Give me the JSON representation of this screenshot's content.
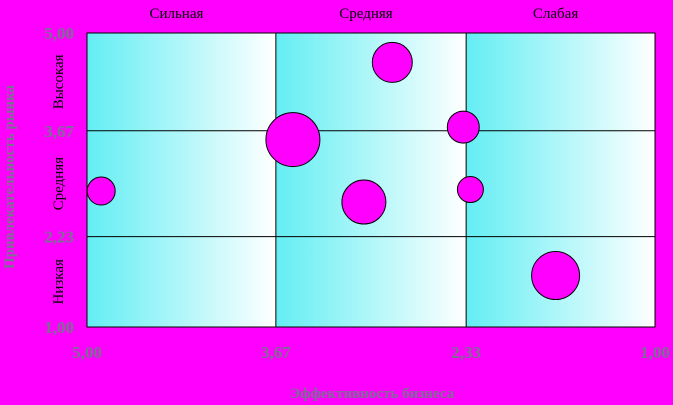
{
  "colors": {
    "background": "#ff00ff",
    "cell_start": "#63eef3",
    "cell_end": "#ffffff",
    "bubble": "#ff00ff",
    "grid": "#000000",
    "axis_text": "#7a6f93"
  },
  "chart_data": {
    "type": "scatter",
    "variant": "bubble-matrix",
    "xlabel": "Эффективность бизнеса",
    "ylabel": "Привлекательность рынка",
    "x_reversed": true,
    "xlim": [
      5.0,
      1.0
    ],
    "ylim": [
      1.0,
      5.0
    ],
    "x_ticks": [
      "5,00",
      "3,67",
      "2,33",
      "1,00"
    ],
    "x_tick_values": [
      5.0,
      3.67,
      2.33,
      1.0
    ],
    "y_ticks": [
      "1,00",
      "2,23",
      "3,67",
      "5,00"
    ],
    "y_tick_values": [
      1.0,
      2.23,
      3.67,
      5.0
    ],
    "column_labels": [
      "Сильная",
      "Средняя",
      "Слабая"
    ],
    "row_labels": [
      "Низкая",
      "Средняя",
      "Высокая"
    ],
    "points": [
      {
        "x": 4.9,
        "y": 2.85,
        "size": 14
      },
      {
        "x": 3.55,
        "y": 3.55,
        "size": 27
      },
      {
        "x": 3.05,
        "y": 2.7,
        "size": 22
      },
      {
        "x": 2.85,
        "y": 4.6,
        "size": 20
      },
      {
        "x": 2.35,
        "y": 3.72,
        "size": 16
      },
      {
        "x": 2.3,
        "y": 2.87,
        "size": 13
      },
      {
        "x": 1.7,
        "y": 1.7,
        "size": 24
      }
    ]
  }
}
